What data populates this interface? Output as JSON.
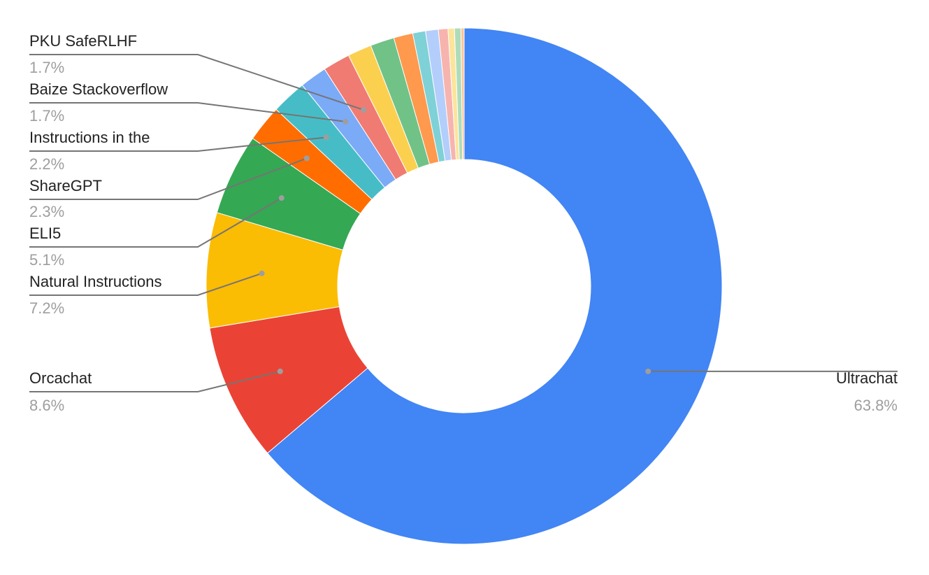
{
  "chart_data": {
    "type": "pie",
    "donut": true,
    "title": "",
    "slices": [
      {
        "label": "Ultrachat",
        "value": 63.8,
        "pct_text": "63.8%",
        "color": "#4285f4",
        "labeled": true
      },
      {
        "label": "Orcachat",
        "value": 8.6,
        "pct_text": "8.6%",
        "color": "#ea4335",
        "labeled": true
      },
      {
        "label": "Natural Instructions",
        "value": 7.2,
        "pct_text": "7.2%",
        "color": "#fbbc04",
        "labeled": true
      },
      {
        "label": "ELI5",
        "value": 5.1,
        "pct_text": "5.1%",
        "color": "#34a853",
        "labeled": true
      },
      {
        "label": "ShareGPT",
        "value": 2.3,
        "pct_text": "2.3%",
        "color": "#ff6d01",
        "labeled": true
      },
      {
        "label": "Instructions in the",
        "value": 2.2,
        "pct_text": "2.2%",
        "color": "#46bdc6",
        "labeled": true
      },
      {
        "label": "Baize Stackoverflow",
        "value": 1.7,
        "pct_text": "1.7%",
        "color": "#7baaf7",
        "labeled": true
      },
      {
        "label": "PKU SafeRLHF",
        "value": 1.7,
        "pct_text": "1.7%",
        "color": "#f07b72",
        "labeled": true
      },
      {
        "label": "",
        "value": 1.5,
        "pct_text": "",
        "color": "#fcd04f",
        "labeled": false
      },
      {
        "label": "",
        "value": 1.5,
        "pct_text": "",
        "color": "#71c287",
        "labeled": false
      },
      {
        "label": "",
        "value": 1.2,
        "pct_text": "",
        "color": "#ff994d",
        "labeled": false
      },
      {
        "label": "",
        "value": 0.8,
        "pct_text": "",
        "color": "#7ed1d7",
        "labeled": false
      },
      {
        "label": "",
        "value": 0.8,
        "pct_text": "",
        "color": "#b3cefb",
        "labeled": false
      },
      {
        "label": "",
        "value": 0.6,
        "pct_text": "",
        "color": "#f7b4ae",
        "labeled": false
      },
      {
        "label": "",
        "value": 0.4,
        "pct_text": "",
        "color": "#fde49b",
        "labeled": false
      },
      {
        "label": "",
        "value": 0.4,
        "pct_text": "",
        "color": "#aedcba",
        "labeled": false
      },
      {
        "label": "",
        "value": 0.2,
        "pct_text": "",
        "color": "#ffc599",
        "labeled": false
      }
    ],
    "legend": "none"
  }
}
